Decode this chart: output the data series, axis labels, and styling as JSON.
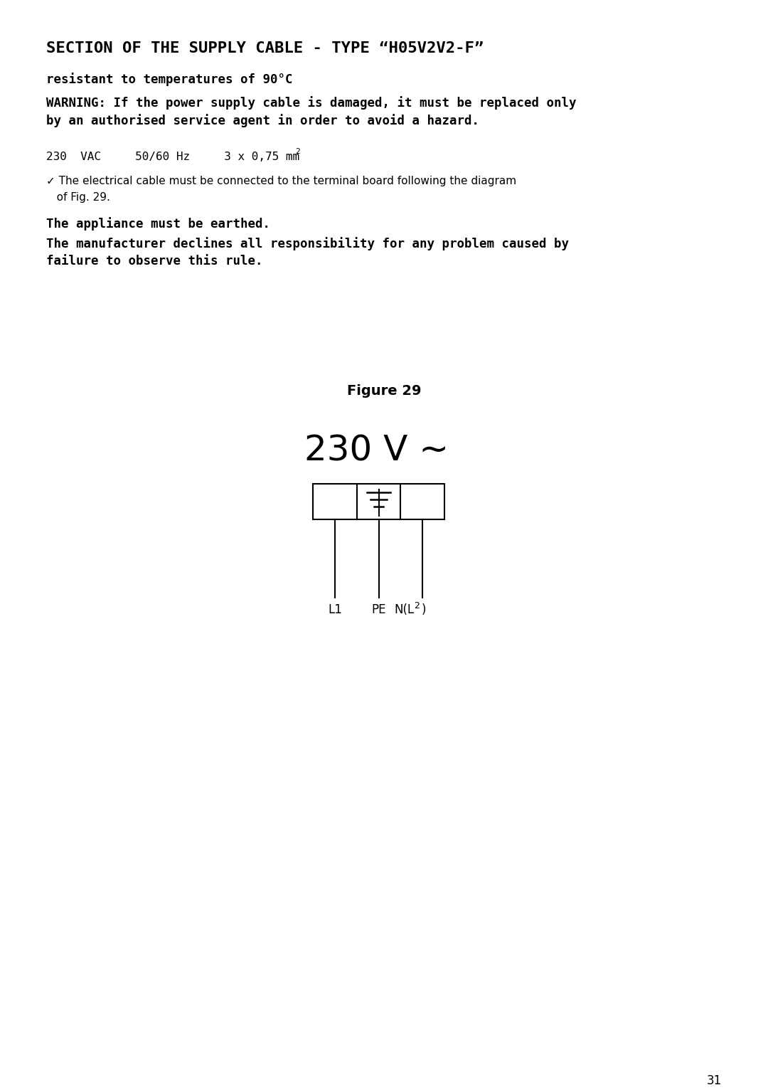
{
  "bg_color": "#ffffff",
  "title": "SECTION OF THE SUPPLY CABLE - TYPE “H05V2V2-F”",
  "subtitle": "resistant to temperatures of 90°C",
  "warning_line1": "WARNING: If the power supply cable is damaged, it must be replaced only",
  "warning_line2": "by an authorised service agent in order to avoid a hazard.",
  "specs_main": "230  VAC     50/60 Hz     3 x 0,75 mm",
  "specs_super": "2",
  "check_line1": "✓ The electrical cable must be connected to the terminal board following the diagram",
  "check_line2": "   of Fig. 29.",
  "bold1": "The appliance must be earthed.",
  "bold2_line1": "The manufacturer declines all responsibility for any problem caused by",
  "bold2_line2": "failure to observe this rule.",
  "figure_label": "Figure 29",
  "voltage_label": "230 V ∼",
  "page_number": "31",
  "text_color": "#000000",
  "bg_color_white": "#ffffff"
}
